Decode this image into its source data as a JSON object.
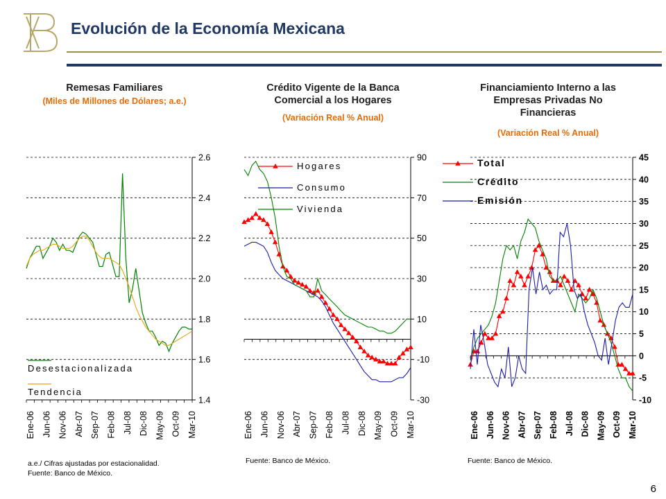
{
  "header": {
    "title": "Evolución de la Economía Mexicana"
  },
  "page_number": "6",
  "colors": {
    "title": "#1f3864",
    "subtitle": "#e36c09",
    "gold": "#9c8e4e",
    "green": "#008000",
    "orange": "#e3a812",
    "red": "#ff0000",
    "blue": "#1a1aa8"
  },
  "chart_data": [
    {
      "id": "remesas",
      "type": "line",
      "title": "Remesas Familiares",
      "subtitle": "(Miles de Millones de Dólares; a.e.)",
      "notes": [
        "a.e./ Cifras ajustadas por estacionalidad.",
        "Fuente: Banco de México."
      ],
      "x_tick_labels": [
        "Ene-06",
        "Jun-06",
        "Nov-06",
        "Abr-07",
        "Sep-07",
        "Feb-08",
        "Jul-08",
        "Dic-08",
        "May-09",
        "Oct-09",
        "Mar-10"
      ],
      "y_ticks": [
        "1.4",
        "1.6",
        "1.8",
        "2.0",
        "2.2",
        "2.4",
        "2.6"
      ],
      "ylim": [
        1.4,
        2.6
      ],
      "y_axis_side": "right",
      "legend_position": "bottom-left",
      "grid": true,
      "series": [
        {
          "name": "Desestacionalizada",
          "color": "#008000",
          "marker": "none",
          "values": [
            2.05,
            2.1,
            2.13,
            2.16,
            2.16,
            2.1,
            2.13,
            2.16,
            2.2,
            2.18,
            2.14,
            2.17,
            2.14,
            2.14,
            2.13,
            2.17,
            2.21,
            2.23,
            2.22,
            2.2,
            2.18,
            2.12,
            2.06,
            2.06,
            2.12,
            2.13,
            2.07,
            2.01,
            2.01,
            2.52,
            2.1,
            1.88,
            1.95,
            2.05,
            1.94,
            1.83,
            1.78,
            1.74,
            1.74,
            1.71,
            1.67,
            1.69,
            1.68,
            1.64,
            1.68,
            1.71,
            1.74,
            1.76,
            1.76,
            1.75,
            1.75
          ]
        },
        {
          "name": "Tendencia",
          "color": "#e3a812",
          "marker": "none",
          "values": [
            2.06,
            2.1,
            2.12,
            2.13,
            2.14,
            2.14,
            2.15,
            2.16,
            2.17,
            2.17,
            2.16,
            2.15,
            2.15,
            2.15,
            2.16,
            2.18,
            2.2,
            2.21,
            2.21,
            2.19,
            2.16,
            2.13,
            2.11,
            2.1,
            2.1,
            2.1,
            2.09,
            2.08,
            2.07,
            2.04,
            2.0,
            1.96,
            1.91,
            1.86,
            1.82,
            1.79,
            1.76,
            1.74,
            1.72,
            1.7,
            1.69,
            1.68,
            1.67,
            1.67,
            1.68,
            1.69,
            1.7,
            1.71,
            1.72,
            1.73,
            1.74
          ]
        }
      ]
    },
    {
      "id": "credito",
      "type": "line",
      "title": "Crédito Vigente de la Banca Comercial a los Hogares",
      "subtitle": "(Variación Real % Anual)",
      "notes": [
        "Fuente: Banco de México."
      ],
      "x_tick_labels": [
        "Ene-06",
        "Jun-06",
        "Nov-06",
        "Abr-07",
        "Sep-07",
        "Feb-08",
        "Jul-08",
        "Dic-08",
        "May-09",
        "Oct-09",
        "Mar-10"
      ],
      "y_ticks": [
        "-30",
        "-10",
        "10",
        "30",
        "50",
        "70",
        "90"
      ],
      "ylim": [
        -30,
        90
      ],
      "y_axis_side": "right",
      "legend_position": "top-left",
      "grid": true,
      "series": [
        {
          "name": "Hogares",
          "color": "#ff0000",
          "marker": "triangle",
          "values": [
            58,
            59,
            60,
            62,
            60,
            59,
            57,
            53,
            48,
            42,
            36,
            34,
            31,
            29,
            28,
            27,
            26,
            24,
            23,
            24,
            21,
            18,
            15,
            12,
            10,
            7,
            5,
            3,
            1,
            -1,
            -4,
            -6,
            -8,
            -9,
            -10,
            -11,
            -11,
            -12,
            -12,
            -12,
            -9,
            -7,
            -5,
            -4
          ]
        },
        {
          "name": "Consumo",
          "color": "#1a1aa8",
          "marker": "none",
          "values": [
            46,
            47,
            48,
            48,
            47,
            46,
            43,
            38,
            34,
            32,
            30,
            29,
            28,
            27,
            26,
            25,
            24,
            23,
            22,
            21,
            19,
            16,
            12,
            8,
            5,
            2,
            -1,
            -4,
            -7,
            -10,
            -13,
            -16,
            -18,
            -20,
            -20,
            -21,
            -21,
            -21,
            -21,
            -20,
            -19,
            -19,
            -17,
            -14
          ]
        },
        {
          "name": "Vivienda",
          "color": "#008000",
          "marker": "none",
          "values": [
            84,
            81,
            86,
            88,
            84,
            82,
            78,
            70,
            60,
            46,
            36,
            31,
            30,
            27,
            26,
            25,
            24,
            21,
            21,
            30,
            24,
            22,
            20,
            18,
            16,
            14,
            12,
            11,
            10,
            9,
            8,
            7,
            6,
            6,
            5,
            4,
            4,
            3,
            3,
            4,
            6,
            8,
            10,
            10
          ]
        }
      ]
    },
    {
      "id": "financiamiento",
      "type": "line",
      "title": "Financiamiento Interno a las Empresas Privadas No Financieras",
      "subtitle": "(Variación Real % Anual)",
      "notes": [
        "Fuente: Banco de México."
      ],
      "x_tick_labels": [
        "Ene-06",
        "Jun-06",
        "Nov-06",
        "Abr-07",
        "Sep-07",
        "Feb-08",
        "Jul-08",
        "Dic-08",
        "May-09",
        "Oct-09",
        "Mar-10"
      ],
      "y_ticks": [
        "-10",
        "-5",
        "0",
        "5",
        "10",
        "15",
        "20",
        "25",
        "30",
        "35",
        "40",
        "45"
      ],
      "ylim": [
        -10,
        45
      ],
      "y_axis_side": "right",
      "legend_position": "top-left",
      "grid": true,
      "series": [
        {
          "name": "Total",
          "color": "#ff0000",
          "marker": "triangle",
          "values": [
            -2,
            1,
            1,
            3,
            5,
            4,
            4,
            5,
            9,
            10,
            13,
            17,
            16,
            19,
            18,
            16,
            18,
            20,
            24,
            25,
            23,
            20,
            19,
            17,
            17,
            16,
            18,
            17,
            15,
            17,
            16,
            14,
            13,
            15,
            14,
            12,
            8,
            7,
            5,
            4,
            2,
            -2,
            -2,
            -3,
            -4,
            -4
          ]
        },
        {
          "name": "Crédito",
          "color": "#008000",
          "marker": "none",
          "values": [
            -1,
            2,
            4,
            5,
            6,
            7,
            9,
            12,
            17,
            22,
            25,
            24,
            25,
            22,
            26,
            28,
            31,
            30,
            29,
            26,
            24,
            22,
            18,
            17,
            17,
            18,
            16,
            14,
            12,
            10,
            14,
            13,
            12,
            13,
            15,
            13,
            10,
            7,
            5,
            3,
            0,
            -3,
            -5,
            -5,
            -7,
            -8
          ]
        },
        {
          "name": "Emisión",
          "color": "#1a1aa8",
          "marker": "none",
          "values": [
            -3,
            6,
            -2,
            7,
            3,
            -2,
            -4,
            -6,
            -7,
            -3,
            -5,
            2,
            -7,
            -5,
            0,
            -3,
            -4,
            15,
            20,
            14,
            19,
            15,
            16,
            14,
            15,
            15,
            28,
            27,
            30,
            25,
            15,
            13,
            14,
            10,
            7,
            5,
            3,
            0,
            -1,
            4,
            -2,
            3,
            8,
            11,
            12,
            11,
            11,
            14
          ]
        }
      ]
    }
  ]
}
